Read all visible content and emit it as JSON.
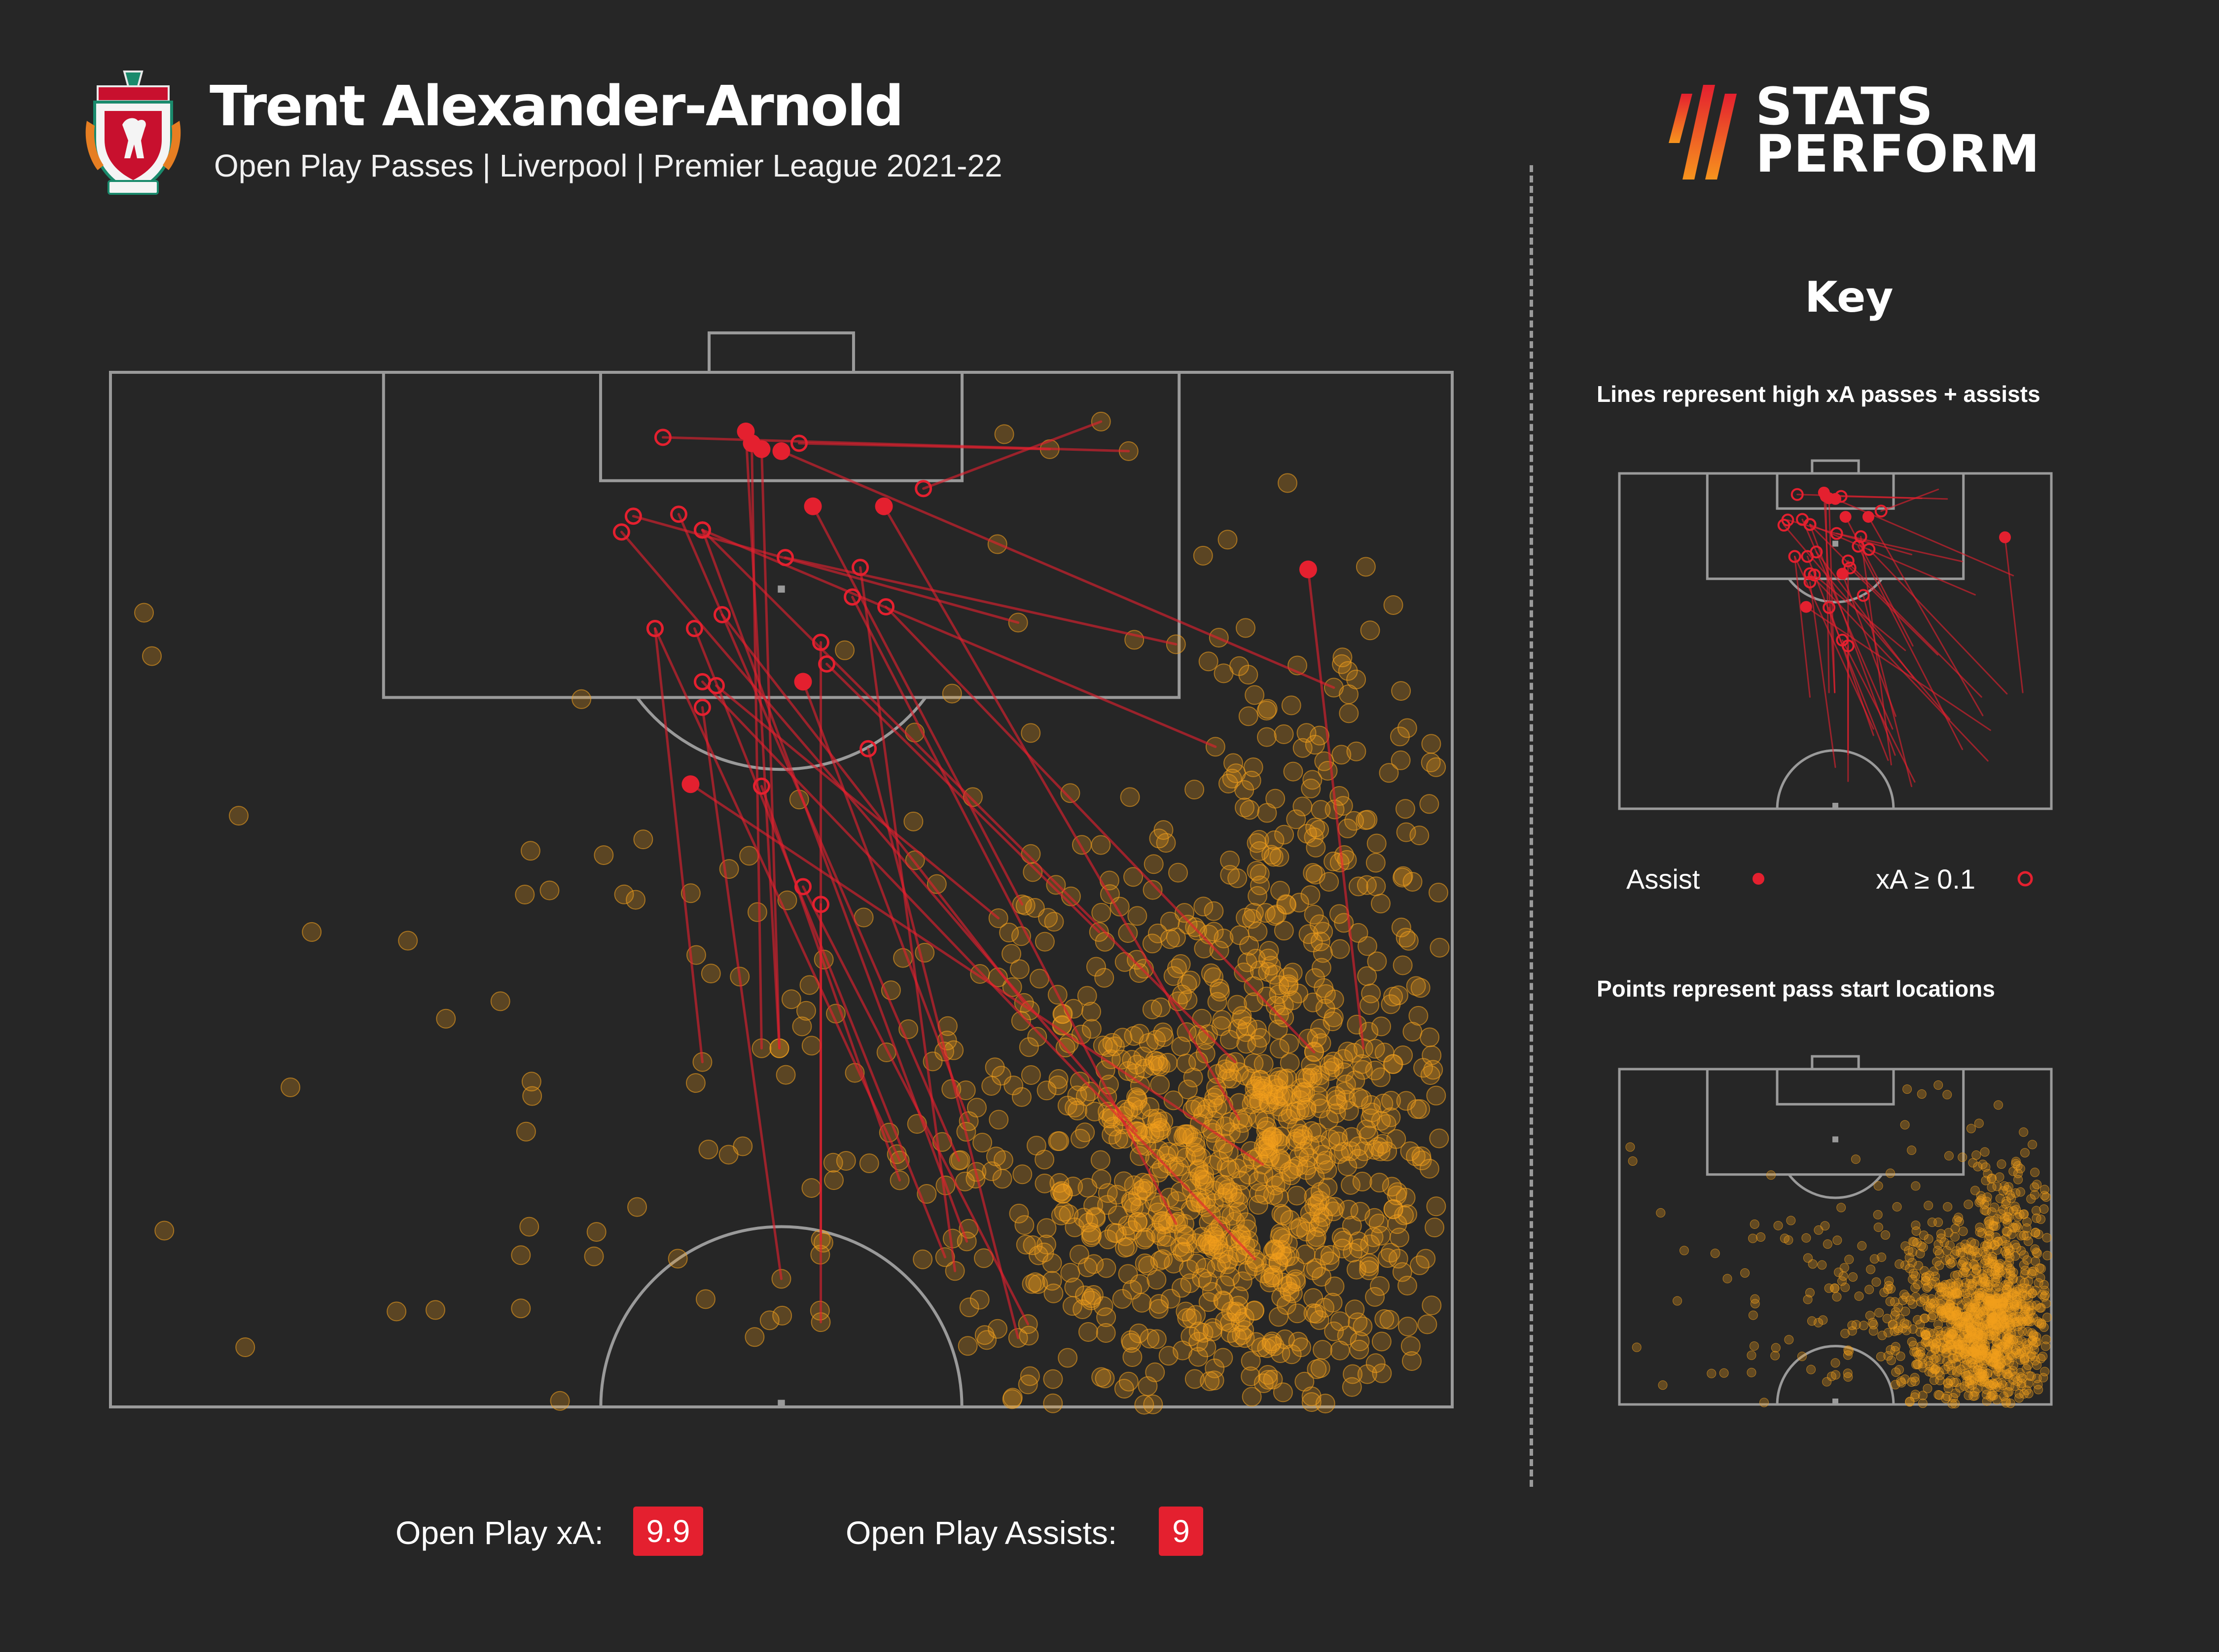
{
  "header": {
    "title": "Trent Alexander-Arnold",
    "subtitle": "Open Play Passes | Liverpool | Premier League 2021-22"
  },
  "brand": {
    "line1": "STATS",
    "line2": "PERFORM",
    "club_crest": "liverpool-crest-icon",
    "logo_icon": "stats-perform-slashes-icon"
  },
  "key": {
    "title": "Key",
    "lines_caption": "Lines represent high xA passes + assists",
    "points_caption": "Points represent pass start locations",
    "assist_label": "Assist",
    "xa_label": "xA ≥ 0.1"
  },
  "stats": {
    "xa_label": "Open Play xA:",
    "xa_value": "9.9",
    "assists_label": "Open Play Assists:",
    "assists_value": "9"
  },
  "colors": {
    "background": "#262626",
    "pitch_lines": "#9a9a9a",
    "pass_start": "#f2a01c",
    "key_pass": "#e4202f"
  },
  "chart_data": {
    "type": "scatter",
    "pitch": "half-pitch, attacking upwards, 105 x 68 m",
    "units": "metres; x = 0 to 68 (left to right), y = distance from goal line",
    "key_passes": [
      {
        "type": "assist",
        "start": [
          33.9,
          34.3
        ],
        "end": [
          32.2,
          3.0
        ]
      },
      {
        "type": "assist",
        "start": [
          33.9,
          34.3
        ],
        "end": [
          33.0,
          3.9
        ]
      },
      {
        "type": "assist",
        "start": [
          33.0,
          34.3
        ],
        "end": [
          32.5,
          3.6
        ]
      },
      {
        "type": "assist",
        "start": [
          46.2,
          27.0
        ],
        "end": [
          35.6,
          6.8
        ]
      },
      {
        "type": "assist",
        "start": [
          43.5,
          38.0
        ],
        "end": [
          35.1,
          15.7
        ]
      },
      {
        "type": "assist",
        "start": [
          63.5,
          34.3
        ],
        "end": [
          60.7,
          10.0
        ]
      },
      {
        "type": "assist",
        "start": [
          62.0,
          16.0
        ],
        "end": [
          34.0,
          4.0
        ]
      },
      {
        "type": "assist",
        "start": [
          58.4,
          40.2
        ],
        "end": [
          29.4,
          20.9
        ]
      },
      {
        "type": "assist",
        "start": [
          57.2,
          37.9
        ],
        "end": [
          39.2,
          6.8
        ]
      },
      {
        "type": "xA >= 0.1",
        "start": [
          51.6,
          4.0
        ],
        "end": [
          28.0,
          3.3
        ]
      },
      {
        "type": "xA >= 0.1",
        "start": [
          47.6,
          3.9
        ],
        "end": [
          34.9,
          3.6
        ]
      },
      {
        "type": "xA >= 0.1",
        "start": [
          50.2,
          2.5
        ],
        "end": [
          41.2,
          5.9
        ]
      },
      {
        "type": "xA >= 0.1",
        "start": [
          46.0,
          12.7
        ],
        "end": [
          26.5,
          7.3
        ]
      },
      {
        "type": "xA >= 0.1",
        "start": [
          54.0,
          13.8
        ],
        "end": [
          34.2,
          9.4
        ]
      },
      {
        "type": "xA >= 0.1",
        "start": [
          45.0,
          27.7
        ],
        "end": [
          30.7,
          15.9
        ]
      },
      {
        "type": "xA >= 0.1",
        "start": [
          61.0,
          34.5
        ],
        "end": [
          39.3,
          11.9
        ]
      },
      {
        "type": "xA >= 0.1",
        "start": [
          46.5,
          48.3
        ],
        "end": [
          35.1,
          26.1
        ]
      },
      {
        "type": "xA >= 0.1",
        "start": [
          54.0,
          43.2
        ],
        "end": [
          37.6,
          11.4
        ]
      },
      {
        "type": "xA >= 0.1",
        "start": [
          58.0,
          45.0
        ],
        "end": [
          30.0,
          15.7
        ]
      },
      {
        "type": "xA >= 0.1",
        "start": [
          42.3,
          44.9
        ],
        "end": [
          29.6,
          13.0
        ]
      },
      {
        "type": "xA >= 0.1",
        "start": [
          46.3,
          32.0
        ],
        "end": [
          31.0,
          12.3
        ]
      },
      {
        "type": "xA >= 0.1",
        "start": [
          52.0,
          38.5
        ],
        "end": [
          25.9,
          8.1
        ]
      },
      {
        "type": "xA >= 0.1",
        "start": [
          40.0,
          40.0
        ],
        "end": [
          27.6,
          13.0
        ]
      },
      {
        "type": "xA >= 0.1",
        "start": [
          30.0,
          35.0
        ],
        "end": [
          27.6,
          13.0
        ]
      },
      {
        "type": "xA >= 0.1",
        "start": [
          46.0,
          49.0
        ],
        "end": [
          38.4,
          19.1
        ]
      },
      {
        "type": "xA >= 0.1",
        "start": [
          43.0,
          40.0
        ],
        "end": [
          28.8,
          7.2
        ]
      },
      {
        "type": "xA >= 0.1",
        "start": [
          42.8,
          45.6
        ],
        "end": [
          38.0,
          9.9
        ]
      },
      {
        "type": "xA >= 0.1",
        "start": [
          36.0,
          44.0
        ],
        "end": [
          36.0,
          13.7
        ]
      },
      {
        "type": "xA >= 0.1",
        "start": [
          36.0,
          48.2
        ],
        "end": [
          36.0,
          27.0
        ]
      },
      {
        "type": "xA >= 0.1",
        "start": [
          50.1,
          28.4
        ],
        "end": [
          36.3,
          14.8
        ]
      },
      {
        "type": "xA >= 0.1",
        "start": [
          57.0,
          35.0
        ],
        "end": [
          30.0,
          8.0
        ]
      },
      {
        "type": "xA >= 0.1",
        "start": [
          56.0,
          19.0
        ],
        "end": [
          30.0,
          8.0
        ]
      },
      {
        "type": "xA >= 0.1",
        "start": [
          43.4,
          44.1
        ],
        "end": [
          30.0,
          8.0
        ]
      },
      {
        "type": "xA >= 0.1",
        "start": [
          34.0,
          46.0
        ],
        "end": [
          30.0,
          17.0
        ]
      },
      {
        "type": "xA >= 0.1",
        "start": [
          40.0,
          41.0
        ],
        "end": [
          33.0,
          21.0
        ]
      }
    ],
    "pass_starts": {
      "description": "approx. 1,300 open-play pass start locations, concentrated on the right flank between 20 m and 52 m from goal, with a sparse scatter across the rest of the attacking half",
      "clusters": [
        {
          "center": [
            57.0,
            41.0
          ],
          "spread": [
            6.0,
            6.5
          ],
          "count": 850
        },
        {
          "center": [
            61.0,
            25.0
          ],
          "spread": [
            3.5,
            7.0
          ],
          "count": 170
        },
        {
          "center": [
            50.0,
            38.0
          ],
          "spread": [
            8.0,
            10.0
          ],
          "count": 170
        },
        {
          "center": [
            40.0,
            38.0
          ],
          "spread": [
            16.0,
            11.0
          ],
          "count": 70
        }
      ],
      "outliers": [
        [
          1.7,
          12.2
        ],
        [
          2.1,
          14.4
        ],
        [
          6.5,
          22.5
        ],
        [
          10.2,
          28.4
        ],
        [
          17.0,
          32.8
        ],
        [
          21.0,
          26.5
        ],
        [
          25.0,
          24.5
        ],
        [
          27.0,
          23.7
        ],
        [
          20.8,
          44.8
        ],
        [
          20.8,
          47.5
        ]
      ]
    }
  }
}
